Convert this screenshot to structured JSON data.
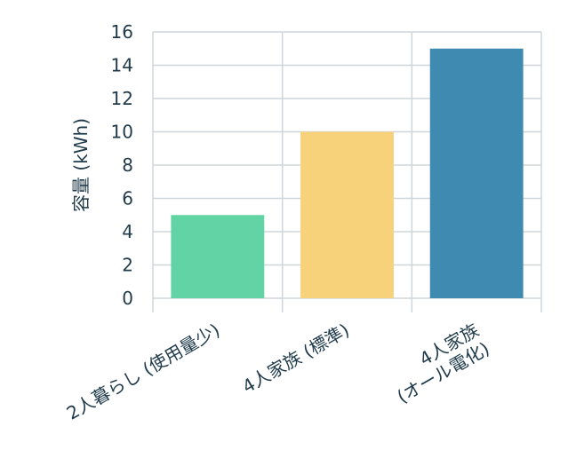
{
  "chart_data": {
    "type": "bar",
    "y_label": "容量 (kWh)",
    "categories": [
      "2人暮らし (使用量少)",
      "4人家族 (標準)",
      "4人家族\n(オール電化)"
    ],
    "values": [
      5,
      10,
      15
    ],
    "colors": [
      "#62d3a4",
      "#f7d27a",
      "#3f8ab0"
    ],
    "ylim": [
      0,
      16
    ],
    "yticks": [
      0,
      2,
      4,
      6,
      8,
      10,
      12,
      14,
      16
    ],
    "grid": true
  }
}
